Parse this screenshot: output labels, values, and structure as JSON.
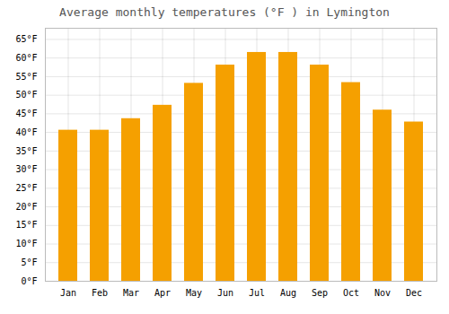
{
  "chart_data": {
    "type": "bar",
    "title": "Average monthly temperatures (°F ) in Lymington",
    "categories": [
      "Jan",
      "Feb",
      "Mar",
      "Apr",
      "May",
      "Jun",
      "Jul",
      "Aug",
      "Sep",
      "Oct",
      "Nov",
      "Dec"
    ],
    "values": [
      40.6,
      40.6,
      43.7,
      47.3,
      53.2,
      58.1,
      61.5,
      61.5,
      58.1,
      53.4,
      46.0,
      42.8
    ],
    "color": "#F5A000",
    "ylim": [
      0,
      68
    ],
    "yticks": [
      {
        "value": 0,
        "label": "0°F"
      },
      {
        "value": 5,
        "label": "5°F"
      },
      {
        "value": 10,
        "label": "10°F"
      },
      {
        "value": 15,
        "label": "15°F"
      },
      {
        "value": 20,
        "label": "20°F"
      },
      {
        "value": 25,
        "label": "25°F"
      },
      {
        "value": 30,
        "label": "30°F"
      },
      {
        "value": 35,
        "label": "35°F"
      },
      {
        "value": 40,
        "label": "40°F"
      },
      {
        "value": 45,
        "label": "45°F"
      },
      {
        "value": 50,
        "label": "50°F"
      },
      {
        "value": 55,
        "label": "55°F"
      },
      {
        "value": 60,
        "label": "60°F"
      },
      {
        "value": 65,
        "label": "65°F"
      }
    ],
    "grid": true
  }
}
